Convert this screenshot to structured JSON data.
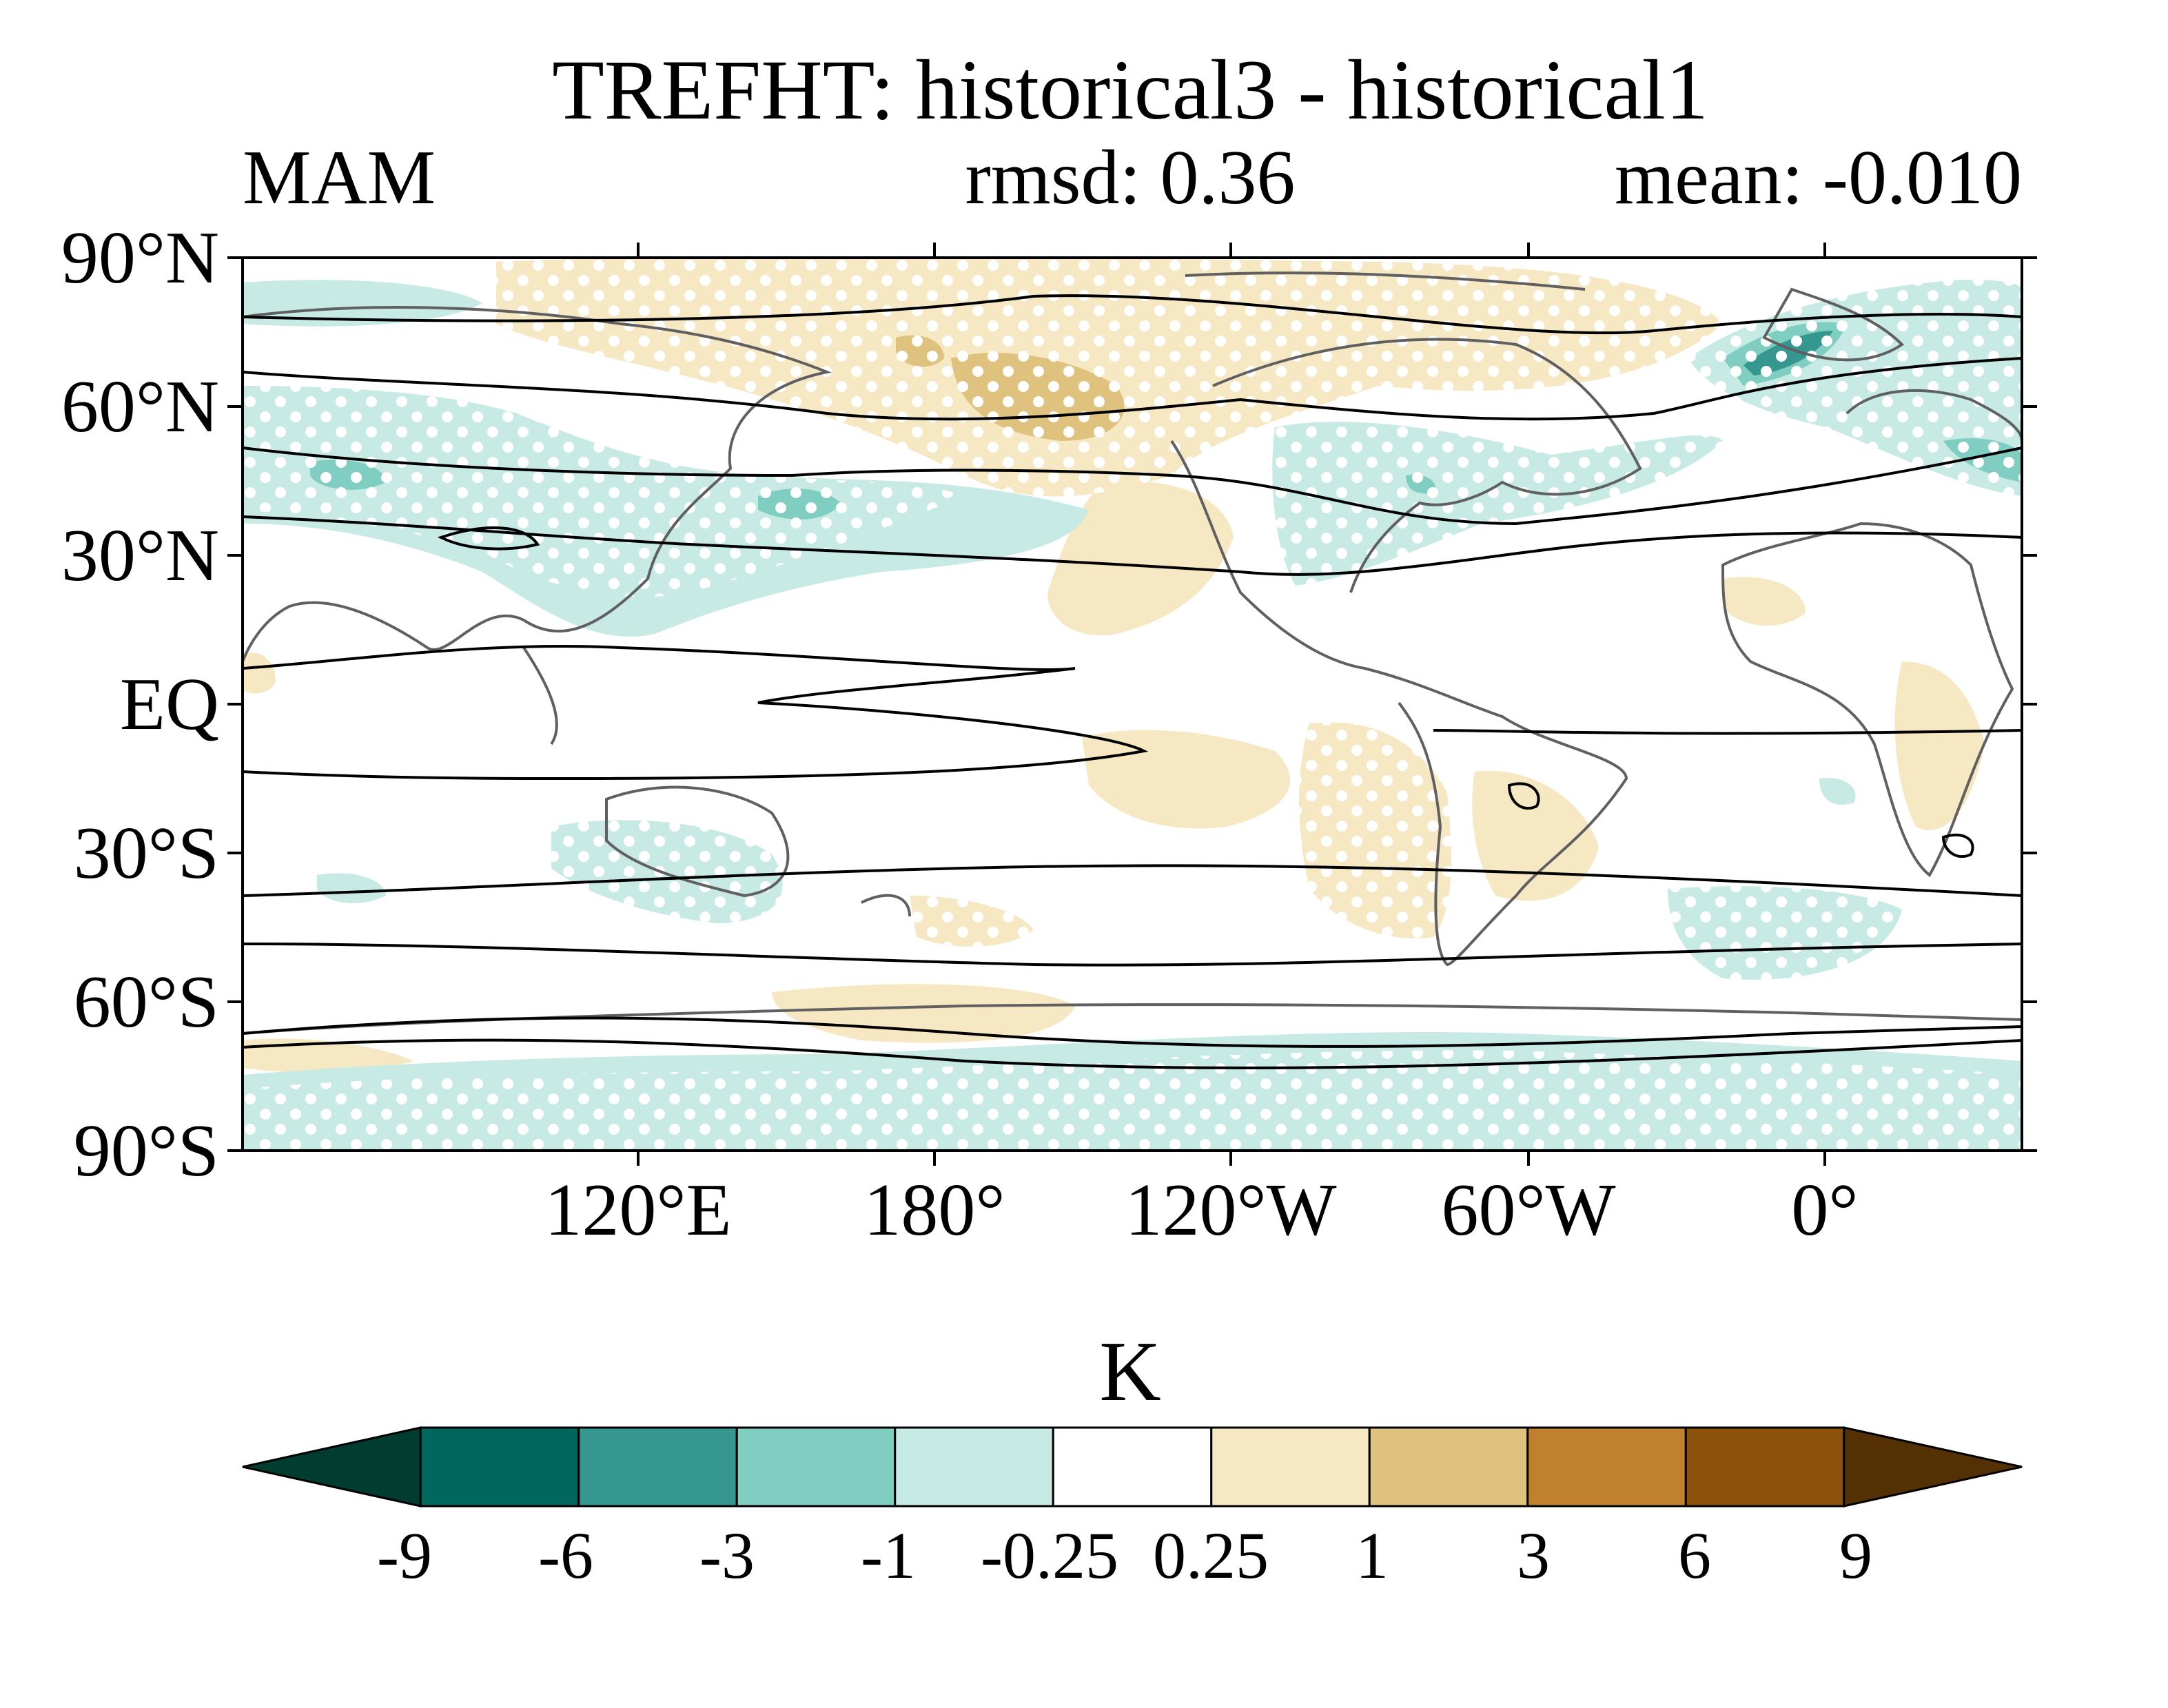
{
  "title": "TREFHT: historical3 - historical1",
  "left_string": "MAM",
  "center_string": "rmsd: 0.36",
  "right_string": "mean: -0.010",
  "lat_ticks": [
    "90°N",
    "60°N",
    "30°N",
    "EQ",
    "30°S",
    "60°S",
    "90°S"
  ],
  "lon_ticks": [
    "120°E",
    "180°",
    "120°W",
    "60°W",
    "0°"
  ],
  "colorbar": {
    "units": "K",
    "labels": [
      "-9",
      "-6",
      "-3",
      "-1",
      "-0.25",
      "0.25",
      "1",
      "3",
      "6",
      "9"
    ],
    "colors": [
      "#003c30",
      "#01665e",
      "#35978f",
      "#80cdc1",
      "#c7eae5",
      "#ffffff",
      "#f6e8c3",
      "#dfc27d",
      "#bf812d",
      "#8c510a",
      "#543005"
    ]
  },
  "chart_data": {
    "type": "heatmap",
    "title": "TREFHT: historical3 - historical1",
    "season": "MAM",
    "rmsd": 0.36,
    "mean": -0.01,
    "units": "K",
    "x_axis": "longitude",
    "y_axis": "latitude",
    "xlim": [
      30,
      390
    ],
    "ylim": [
      -90,
      90
    ],
    "levels": [
      -9,
      -6,
      -3,
      -1,
      -0.25,
      0.25,
      1,
      3,
      6,
      9
    ],
    "stippling": "white dots mark areas",
    "contours": "black contour lines overlaid",
    "coastlines": true
  }
}
